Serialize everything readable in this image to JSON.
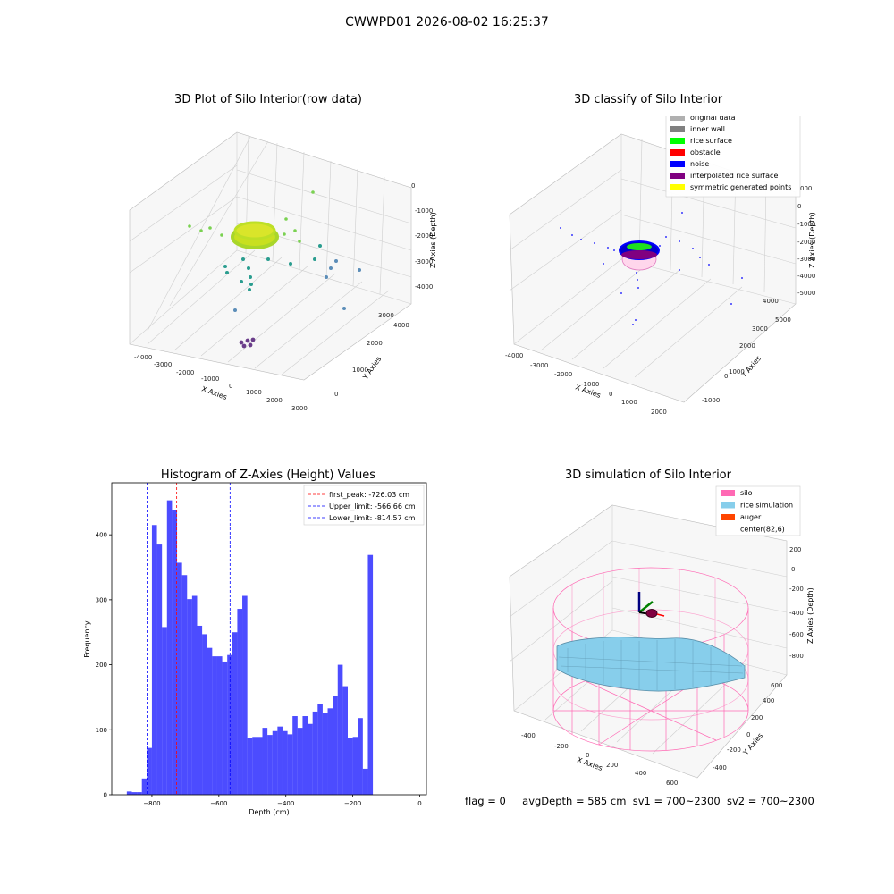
{
  "figure": {
    "suptitle": "CWWPD01 2026-08-02 16:25:37",
    "status": {
      "flag": "flag = 0",
      "avg_depth": "avgDepth = 585 cm",
      "sv1": "sv1 = 700~2300",
      "sv2": "sv2 = 700~2300"
    }
  },
  "chart_data": [
    {
      "type": "scatter",
      "title": "3D Plot of Silo Interior(row data)",
      "xlabel": "X Axies",
      "ylabel": "Y Axies",
      "zlabel": "Z Axies (Depth)",
      "x_ticks": [
        "-4000",
        "-3000",
        "-2000",
        "-1000",
        "0",
        "1000",
        "2000",
        "3000"
      ],
      "y_ticks": [
        "0",
        "1000",
        "2000",
        "3000",
        "4000"
      ],
      "z_ticks": [
        "0",
        "-1000",
        "-2000",
        "-3000",
        "-4000"
      ],
      "colormap": "viridis",
      "point_clusters": [
        {
          "description": "rice surface ring",
          "x_center": 500,
          "y_center": 1800,
          "z": -2200,
          "color": "#c8e020"
        },
        {
          "description": "scattered wall points",
          "color": "#7ad151"
        },
        {
          "description": "deep noise points",
          "z": -4500,
          "color": "#6a3d8a"
        }
      ]
    },
    {
      "type": "scatter",
      "title": "3D classify of Silo Interior",
      "xlabel": "X Axies",
      "ylabel": "Y Axies",
      "zlabel": "Z Axies (Depth)",
      "x_ticks": [
        "-4000",
        "-3000",
        "-2000",
        "-1000",
        "0",
        "1000",
        "2000"
      ],
      "y_ticks": [
        "-1000",
        "0",
        "1000",
        "2000",
        "3000",
        "4000",
        "5000"
      ],
      "z_ticks": [
        "000",
        "0",
        "-1000",
        "-2000",
        "-3000",
        "-4000",
        "-5000"
      ],
      "legend": {
        "position": "upper-right",
        "entries": [
          {
            "label": "original data",
            "color": "#b0b0b0"
          },
          {
            "label": "inner wall",
            "color": "#808080"
          },
          {
            "label": "rice surface",
            "color": "#00ff00"
          },
          {
            "label": "obstacle",
            "color": "#ff0000"
          },
          {
            "label": "noise",
            "color": "#0000ff"
          },
          {
            "label": "interpolated rice surface",
            "color": "#800080"
          },
          {
            "label": "symmetric generated points",
            "color": "#ffff00"
          }
        ]
      }
    },
    {
      "type": "bar",
      "title": "Histogram of Z-Axies (Height) Values",
      "xlabel": "Depth (cm)",
      "ylabel": "Frequency",
      "xlim": [
        -920,
        20
      ],
      "ylim": [
        0,
        480
      ],
      "x_ticks": [
        -800,
        -600,
        -400,
        -200,
        0
      ],
      "y_ticks": [
        0,
        100,
        200,
        300,
        400
      ],
      "bin_width": 15,
      "bin_start": -875,
      "values": [
        5,
        4,
        4,
        25,
        72,
        415,
        385,
        258,
        453,
        438,
        357,
        338,
        301,
        306,
        260,
        247,
        226,
        213,
        213,
        205,
        215,
        250,
        286,
        306,
        88,
        89,
        89,
        103,
        92,
        98,
        105,
        98,
        93,
        121,
        103,
        121,
        109,
        128,
        139,
        126,
        133,
        152,
        200,
        167,
        87,
        89,
        118,
        40,
        369
      ],
      "bar_color": "#0000ff",
      "vlines": [
        {
          "label": "first_peak: -726.03 cm",
          "x": -726.03,
          "color": "#ff0000"
        },
        {
          "label": "Upper_limit: -566.66 cm",
          "x": -566.66,
          "color": "#0000ff"
        },
        {
          "label": "Lower_limit: -814.57 cm",
          "x": -814.57,
          "color": "#0000ff"
        }
      ],
      "legend_position": "upper-right"
    },
    {
      "type": "surface",
      "title": "3D simulation of Silo Interior",
      "xlabel": "X Axies",
      "ylabel": "Y Axies",
      "zlabel": "Z Axies (Depth)",
      "x_ticks": [
        "-400",
        "-200",
        "0",
        "200",
        "400",
        "600"
      ],
      "y_ticks": [
        "-400",
        "-200",
        "0",
        "200",
        "400",
        "600"
      ],
      "z_ticks": [
        "200",
        "0",
        "-200",
        "-400",
        "-600",
        "-800"
      ],
      "legend": {
        "position": "upper-right",
        "entries": [
          {
            "label": "silo",
            "color": "#ff69b4"
          },
          {
            "label": "rice simulation",
            "color": "#87ceeb"
          },
          {
            "label": "auger",
            "color": "#ff4500"
          },
          {
            "label": "center(82,6)",
            "color": ""
          }
        ]
      }
    }
  ]
}
